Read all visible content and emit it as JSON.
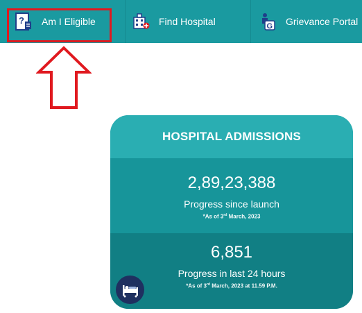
{
  "nav": {
    "items": [
      {
        "label": "Am I Eligible",
        "icon": "eligibility-icon"
      },
      {
        "label": "Find Hospital",
        "icon": "hospital-icon"
      },
      {
        "label": "Grievance Portal",
        "icon": "grievance-icon"
      }
    ]
  },
  "card": {
    "title": "HOSPITAL ADMISSIONS",
    "launch": {
      "value": "2,89,23,388",
      "label": "Progress since launch",
      "note_prefix": "*As of 3",
      "note_sup": "rd",
      "note_suffix": " March, 2023"
    },
    "last24": {
      "value": "6,851",
      "label": "Progress in last 24 hours",
      "note_prefix": "*As of 3",
      "note_sup": "rd",
      "note_suffix": " March, 2023 at 11.59 P.M."
    }
  },
  "colors": {
    "navbar": "#1a9aa0",
    "card_header": "#2aaeb2",
    "highlight": "#e0191f",
    "bed_icon_bg": "#1f3060"
  }
}
